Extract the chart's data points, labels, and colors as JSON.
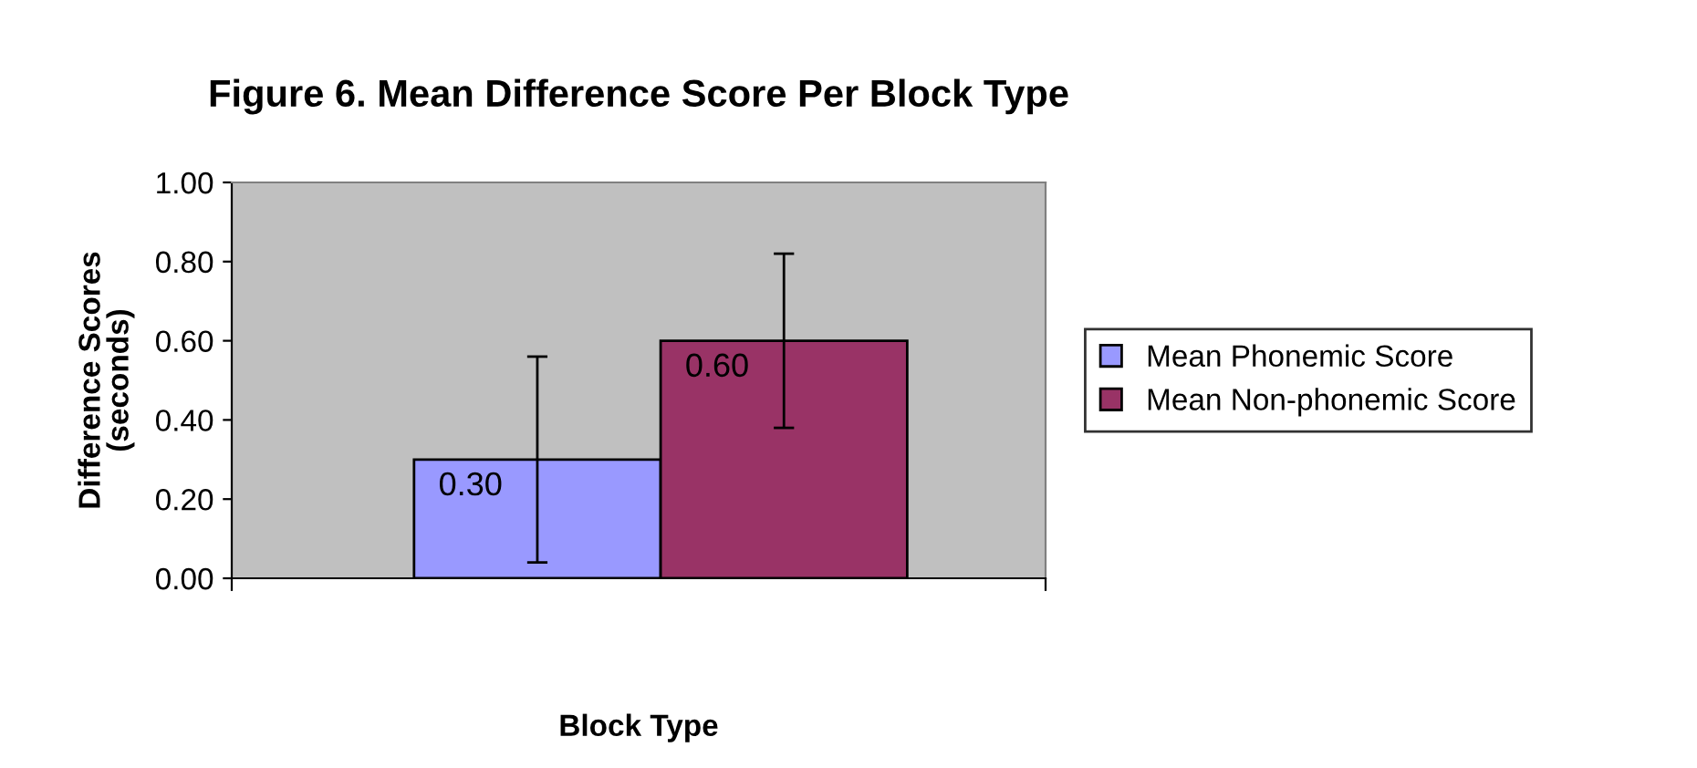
{
  "chart_data": {
    "type": "bar",
    "title": "Figure 6. Mean Difference Score Per Block Type",
    "xlabel": "Block Type",
    "ylabel": "Difference Scores\n(seconds)",
    "categories": [
      null
    ],
    "series": [
      {
        "name": "Mean Phonemic Score",
        "color": "#9999ff",
        "values": [
          0.3
        ],
        "errors": [
          0.26
        ],
        "value_labels": [
          "0.30"
        ]
      },
      {
        "name": "Mean Non-phonemic Score",
        "color": "#993366",
        "values": [
          0.6
        ],
        "errors": [
          0.22
        ],
        "value_labels": [
          "0.60"
        ]
      }
    ],
    "ylim": [
      0,
      1
    ],
    "yticks": [
      {
        "value": 0,
        "label": "0.00"
      },
      {
        "value": 0.2,
        "label": "0.20"
      },
      {
        "value": 0.4,
        "label": "0.40"
      },
      {
        "value": 0.6,
        "label": "0.60"
      },
      {
        "value": 0.8,
        "label": "0.80"
      },
      {
        "value": 1,
        "label": "1.00"
      }
    ],
    "grid": false,
    "legend": "right"
  }
}
